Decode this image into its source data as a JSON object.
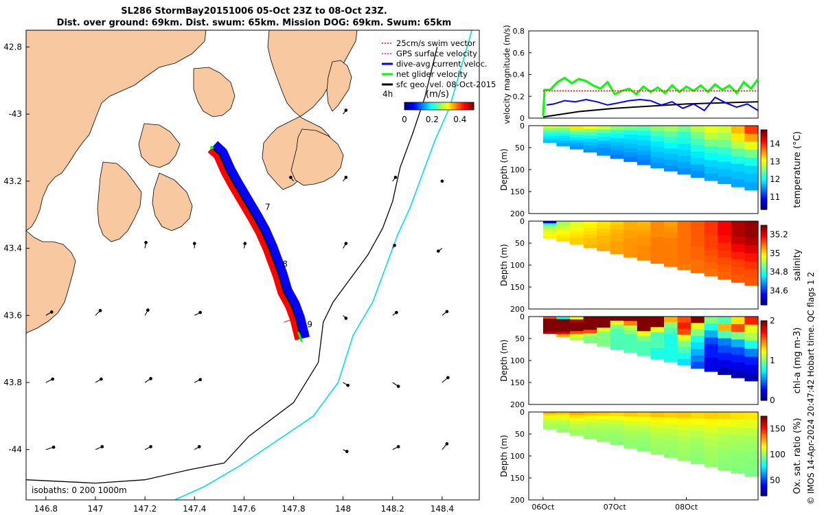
{
  "title": {
    "line1": "SL286 StormBay20151006 05-Oct 23Z to 08-Oct 23Z.",
    "line2": "Dist. over ground: 69km. Dist. swum: 65km. Mission DOG: 69km. Swum: 65km"
  },
  "credit": "© IMOS 14-Apr-2024 20:47:42 Hobart time. QC flags 1  2",
  "colors": {
    "land": "#f8c8a0",
    "swim": "#ff0000",
    "gps": "#ff00ff",
    "current": "#0000ff",
    "net": "#00ff00",
    "geo": "#000000",
    "isobath1000": "#00e0e0",
    "isobath200": "#000000"
  },
  "chart_data": [
    {
      "type": "map",
      "title": "Glider track map",
      "xlim": [
        146.72,
        148.55
      ],
      "ylim": [
        -44.15,
        -42.75
      ],
      "xticks": [
        146.8,
        147,
        147.2,
        147.4,
        147.6,
        147.8,
        148,
        148.2,
        148.4
      ],
      "yticks": [
        -42.8,
        -43,
        -43.2,
        -43.4,
        -43.6,
        -43.8,
        -44
      ],
      "ytick_labels": [
        "42.8",
        "-43",
        "43.2",
        "43.4",
        "43.6",
        "43.8",
        "-44"
      ],
      "legend": [
        {
          "label": "25cm/s swim vector",
          "color": "#ff0000",
          "style": "dotted"
        },
        {
          "label": "GPS surface velocity",
          "color": "#ff00ff",
          "style": "dotted"
        },
        {
          "label": "dive-avg current veloc.",
          "color": "#0000ff",
          "style": "solid"
        },
        {
          "label": "net glider velocity",
          "color": "#00ff00",
          "style": "solid"
        },
        {
          "label": "sfc geo. vel. 08-Oct-2015",
          "color": "#000000",
          "style": "solid"
        }
      ],
      "legend_note": "4h",
      "colorbar": {
        "label": "(m/s)",
        "ticks": [
          "0",
          "0.2",
          "0.4"
        ],
        "range": [
          0,
          0.5
        ]
      },
      "track": [
        [
          147.47,
          -43.1
        ],
        [
          147.5,
          -43.12
        ],
        [
          147.53,
          -43.17
        ],
        [
          147.56,
          -43.21
        ],
        [
          147.6,
          -43.26
        ],
        [
          147.64,
          -43.31
        ],
        [
          147.67,
          -43.35
        ],
        [
          147.7,
          -43.4
        ],
        [
          147.72,
          -43.44
        ],
        [
          147.74,
          -43.48
        ],
        [
          147.76,
          -43.53
        ],
        [
          147.79,
          -43.57
        ],
        [
          147.81,
          -43.61
        ],
        [
          147.83,
          -43.67
        ]
      ],
      "track_labels": [
        {
          "text": "7",
          "lon": 147.685,
          "lat": -43.285
        },
        {
          "text": "8",
          "lon": 147.755,
          "lat": -43.455
        },
        {
          "text": "9",
          "lon": 147.855,
          "lat": -43.635
        }
      ],
      "isobath_labels": "isobaths: 0   200  1000m",
      "isobath_200m": [
        [
          146.72,
          -44.09
        ],
        [
          147.0,
          -44.1
        ],
        [
          147.2,
          -44.09
        ],
        [
          147.38,
          -44.06
        ],
        [
          147.52,
          -44.04
        ],
        [
          147.62,
          -43.96
        ],
        [
          147.8,
          -43.86
        ],
        [
          147.9,
          -43.74
        ],
        [
          147.92,
          -43.62
        ],
        [
          147.96,
          -43.56
        ],
        [
          148.02,
          -43.5
        ],
        [
          148.1,
          -43.42
        ],
        [
          148.16,
          -43.34
        ],
        [
          148.2,
          -43.26
        ],
        [
          148.23,
          -43.16
        ],
        [
          148.28,
          -43.06
        ],
        [
          148.33,
          -42.95
        ],
        [
          148.38,
          -42.8
        ]
      ],
      "isobath_1000m": [
        [
          147.32,
          -44.15
        ],
        [
          147.44,
          -44.11
        ],
        [
          147.58,
          -44.05
        ],
        [
          147.72,
          -43.98
        ],
        [
          147.88,
          -43.9
        ],
        [
          147.98,
          -43.8
        ],
        [
          148.04,
          -43.66
        ],
        [
          148.12,
          -43.56
        ],
        [
          148.18,
          -43.44
        ],
        [
          148.22,
          -43.36
        ],
        [
          148.27,
          -43.28
        ],
        [
          148.31,
          -43.2
        ],
        [
          148.37,
          -43.08
        ],
        [
          148.43,
          -42.98
        ],
        [
          148.52,
          -42.75
        ]
      ]
    },
    {
      "type": "line",
      "ylabel": "velocity magnitude (m/s)",
      "ylim": [
        0,
        0.8
      ],
      "yticks": [
        0,
        0.2,
        0.4,
        0.6,
        0.8
      ],
      "xlim_days": [
        -0.2,
        3.0
      ],
      "series": [
        {
          "name": "net glider velocity",
          "color": "#00ff00",
          "x": [
            0,
            0.02,
            0.1,
            0.2,
            0.3,
            0.4,
            0.5,
            0.6,
            0.7,
            0.8,
            0.9,
            1.0,
            1.1,
            1.2,
            1.3,
            1.4,
            1.5,
            1.6,
            1.7,
            1.8,
            1.9,
            2.0,
            2.1,
            2.2,
            2.3,
            2.4,
            2.5,
            2.6,
            2.7,
            2.8,
            2.9,
            3.0
          ],
          "y": [
            0.02,
            0.26,
            0.26,
            0.33,
            0.37,
            0.32,
            0.36,
            0.34,
            0.3,
            0.27,
            0.33,
            0.22,
            0.25,
            0.27,
            0.22,
            0.29,
            0.24,
            0.28,
            0.23,
            0.3,
            0.24,
            0.29,
            0.25,
            0.3,
            0.24,
            0.31,
            0.26,
            0.3,
            0.23,
            0.33,
            0.27,
            0.36
          ]
        },
        {
          "name": "swim speed",
          "color": "#ff0000",
          "x": [
            0,
            3.0
          ],
          "y": [
            0.25,
            0.25
          ]
        },
        {
          "name": "dive-avg current",
          "color": "#0000ff",
          "x": [
            0.05,
            0.15,
            0.3,
            0.45,
            0.6,
            0.75,
            0.9,
            1.05,
            1.2,
            1.35,
            1.5,
            1.65,
            1.8,
            1.95,
            2.1,
            2.25,
            2.4,
            2.55,
            2.7,
            2.85,
            3.0
          ],
          "y": [
            0.12,
            0.13,
            0.16,
            0.15,
            0.17,
            0.15,
            0.12,
            0.14,
            0.16,
            0.17,
            0.16,
            0.12,
            0.15,
            0.09,
            0.13,
            0.07,
            0.19,
            0.14,
            0.1,
            0.13,
            0.07
          ]
        },
        {
          "name": "sfc geo. vel.",
          "color": "#000000",
          "x": [
            0,
            0.5,
            1.0,
            1.5,
            2.0,
            2.5,
            3.0
          ],
          "y": [
            0.01,
            0.06,
            0.09,
            0.11,
            0.13,
            0.14,
            0.15
          ]
        }
      ]
    },
    {
      "type": "heatmap",
      "variable": "temperature",
      "ylabel": "Depth (m)",
      "ylim": [
        200,
        0
      ],
      "yticks": [
        "0",
        "50",
        "100",
        "150",
        "200"
      ],
      "colorbar": {
        "label": "temperature (°C)",
        "ticks": [
          "11",
          "12",
          "13",
          "14"
        ],
        "range": [
          10.3,
          14.8
        ]
      },
      "values": [
        [
          13.0,
          12.8,
          13.2,
          13.1,
          12.9,
          12.6,
          12.5,
          12.4,
          12.6,
          12.7,
          12.5,
          12.8,
          13.0,
          12.9,
          13.4,
          14.0
        ],
        [
          12.6,
          12.5,
          12.7,
          12.6,
          12.4,
          12.2,
          12.1,
          12.1,
          12.3,
          12.4,
          12.2,
          12.5,
          12.8,
          12.7,
          13.2,
          13.5
        ],
        [
          12.4,
          12.3,
          12.4,
          12.3,
          12.1,
          12.0,
          11.9,
          11.9,
          12.1,
          12.2,
          12.1,
          12.3,
          12.5,
          12.5,
          12.8,
          13.0
        ],
        [
          12.2,
          12.1,
          12.1,
          12.0,
          11.9,
          11.8,
          11.8,
          11.8,
          11.9,
          12.0,
          11.9,
          12.1,
          12.2,
          12.2,
          12.4,
          12.5
        ],
        [
          12.0,
          11.9,
          11.9,
          11.8,
          11.7,
          11.7,
          11.7,
          11.7,
          11.8,
          11.8,
          11.8,
          11.9,
          12.0,
          12.0,
          12.1,
          12.1
        ],
        [
          11.9,
          11.8,
          11.7,
          11.7,
          11.6,
          11.6,
          11.6,
          11.6,
          11.7,
          11.7,
          11.7,
          11.8,
          11.8,
          11.8,
          11.8,
          11.8
        ],
        [
          11.8,
          11.7,
          11.6,
          11.6,
          11.5,
          11.5,
          11.5,
          11.5,
          11.6,
          11.6,
          11.6,
          11.6,
          11.7,
          11.7,
          11.7,
          11.7
        ],
        [
          11.7,
          11.6,
          11.5,
          11.5,
          11.5,
          11.4,
          11.4,
          11.4,
          11.5,
          11.5,
          11.5,
          11.5,
          11.6,
          11.6,
          11.6,
          11.6
        ]
      ]
    },
    {
      "type": "heatmap",
      "variable": "salinity",
      "ylabel": "Depth (m)",
      "ylim": [
        200,
        0
      ],
      "yticks": [
        "0",
        "50",
        "100",
        "150",
        "200"
      ],
      "colorbar": {
        "label": "salinity",
        "ticks": [
          "34.6",
          "34.8",
          "35",
          "35.2"
        ],
        "range": [
          34.45,
          35.3
        ]
      },
      "values": [
        [
          34.55,
          34.9,
          34.95,
          34.98,
          35.0,
          35.02,
          35.05,
          35.04,
          35.08,
          35.06,
          35.1,
          35.12,
          35.15,
          35.2,
          35.26,
          35.28
        ],
        [
          34.8,
          34.92,
          34.96,
          34.99,
          35.01,
          35.03,
          35.05,
          35.05,
          35.08,
          35.07,
          35.1,
          35.12,
          35.15,
          35.2,
          35.26,
          35.28
        ],
        [
          34.88,
          34.94,
          34.97,
          35.0,
          35.02,
          35.04,
          35.06,
          35.06,
          35.08,
          35.08,
          35.1,
          35.12,
          35.14,
          35.18,
          35.24,
          35.26
        ],
        [
          34.92,
          34.96,
          34.99,
          35.01,
          35.03,
          35.05,
          35.06,
          35.07,
          35.09,
          35.09,
          35.1,
          35.12,
          35.14,
          35.16,
          35.2,
          35.22
        ],
        [
          34.95,
          34.98,
          35.0,
          35.02,
          35.04,
          35.05,
          35.07,
          35.07,
          35.09,
          35.09,
          35.1,
          35.11,
          35.13,
          35.15,
          35.17,
          35.18
        ],
        [
          34.97,
          34.99,
          35.01,
          35.03,
          35.04,
          35.06,
          35.07,
          35.08,
          35.09,
          35.09,
          35.1,
          35.11,
          35.12,
          35.13,
          35.14,
          35.15
        ],
        [
          34.98,
          35.0,
          35.02,
          35.03,
          35.05,
          35.06,
          35.07,
          35.08,
          35.09,
          35.09,
          35.1,
          35.1,
          35.11,
          35.12,
          35.13,
          35.13
        ],
        [
          34.99,
          35.01,
          35.02,
          35.04,
          35.05,
          35.06,
          35.07,
          35.08,
          35.09,
          35.09,
          35.09,
          35.1,
          35.1,
          35.11,
          35.12,
          35.12
        ]
      ]
    },
    {
      "type": "heatmap",
      "variable": "chl-a",
      "ylabel": "Depth (m)",
      "ylim": [
        200,
        0
      ],
      "yticks": [
        "0",
        "50",
        "100",
        "150",
        "200"
      ],
      "colorbar": {
        "label": "chl-a (mg m-3)",
        "ticks": [
          "0",
          "1",
          "2"
        ],
        "range": [
          0,
          2
        ]
      },
      "values": [
        [
          1.6,
          0.8,
          1.2,
          2.0,
          2.0,
          2.0,
          2.0,
          2.0,
          2.0,
          1.4,
          1.6,
          2.0,
          1.0,
          0.9,
          1.3,
          1.7
        ],
        [
          2.0,
          2.0,
          1.9,
          2.0,
          2.0,
          1.2,
          1.5,
          2.0,
          2.0,
          1.0,
          1.7,
          1.2,
          0.8,
          1.4,
          1.6,
          1.2
        ],
        [
          2.0,
          2.0,
          2.0,
          2.0,
          2.0,
          1.0,
          1.1,
          2.0,
          1.2,
          0.9,
          1.6,
          1.0,
          0.6,
          0.9,
          1.0,
          1.1
        ],
        [
          2.0,
          2.0,
          2.0,
          2.0,
          1.2,
          0.9,
          1.0,
          1.2,
          0.9,
          0.8,
          1.2,
          0.8,
          0.4,
          0.5,
          0.6,
          0.8
        ],
        [
          2.0,
          2.0,
          2.0,
          1.6,
          1.0,
          0.9,
          0.9,
          1.0,
          0.9,
          0.8,
          1.0,
          0.7,
          0.3,
          0.4,
          0.4,
          0.5
        ],
        [
          2.0,
          2.0,
          1.6,
          1.1,
          1.0,
          0.9,
          0.9,
          0.9,
          0.9,
          0.8,
          0.9,
          0.6,
          0.3,
          0.3,
          0.3,
          0.3
        ],
        [
          2.0,
          1.8,
          1.2,
          1.0,
          1.0,
          0.9,
          0.9,
          0.9,
          0.8,
          0.8,
          0.8,
          0.5,
          0.2,
          0.2,
          0.2,
          0.2
        ],
        [
          1.9,
          1.4,
          1.1,
          1.0,
          1.0,
          0.9,
          0.9,
          0.9,
          0.8,
          0.8,
          0.7,
          0.4,
          0.2,
          0.1,
          0.1,
          0.1
        ]
      ]
    },
    {
      "type": "heatmap",
      "variable": "Ox. sat. ratio",
      "ylabel": "Depth (m)",
      "ylim": [
        200,
        0
      ],
      "yticks": [
        "0",
        "50",
        "100",
        "150",
        "200"
      ],
      "xticks_days": [
        0,
        1,
        2
      ],
      "xtick_labels": [
        "06Oct",
        "07Oct",
        "08Oct"
      ],
      "colorbar": {
        "label": "Ox. sat. ratio (%)",
        "ticks": [
          "50",
          "100",
          "150"
        ],
        "range": [
          20,
          175
        ]
      },
      "values": [
        [
          128,
          125,
          130,
          126,
          124,
          122,
          125,
          123,
          126,
          124,
          125,
          122,
          124,
          123,
          121,
          120
        ],
        [
          120,
          118,
          122,
          118,
          116,
          115,
          117,
          116,
          118,
          117,
          118,
          116,
          118,
          115,
          114,
          113
        ],
        [
          114,
          112,
          115,
          112,
          110,
          109,
          111,
          110,
          112,
          111,
          112,
          110,
          112,
          109,
          108,
          107
        ],
        [
          110,
          108,
          110,
          108,
          106,
          105,
          107,
          106,
          108,
          107,
          108,
          106,
          108,
          105,
          104,
          103
        ],
        [
          107,
          105,
          107,
          105,
          104,
          103,
          104,
          103,
          105,
          104,
          105,
          103,
          105,
          103,
          102,
          101
        ],
        [
          105,
          103,
          105,
          103,
          102,
          101,
          102,
          101,
          103,
          102,
          103,
          101,
          103,
          101,
          100,
          99
        ],
        [
          103,
          102,
          103,
          102,
          101,
          100,
          101,
          100,
          102,
          101,
          102,
          100,
          102,
          100,
          99,
          98
        ],
        [
          102,
          101,
          102,
          101,
          100,
          99,
          100,
          99,
          101,
          100,
          101,
          99,
          101,
          99,
          98,
          97
        ]
      ]
    }
  ]
}
